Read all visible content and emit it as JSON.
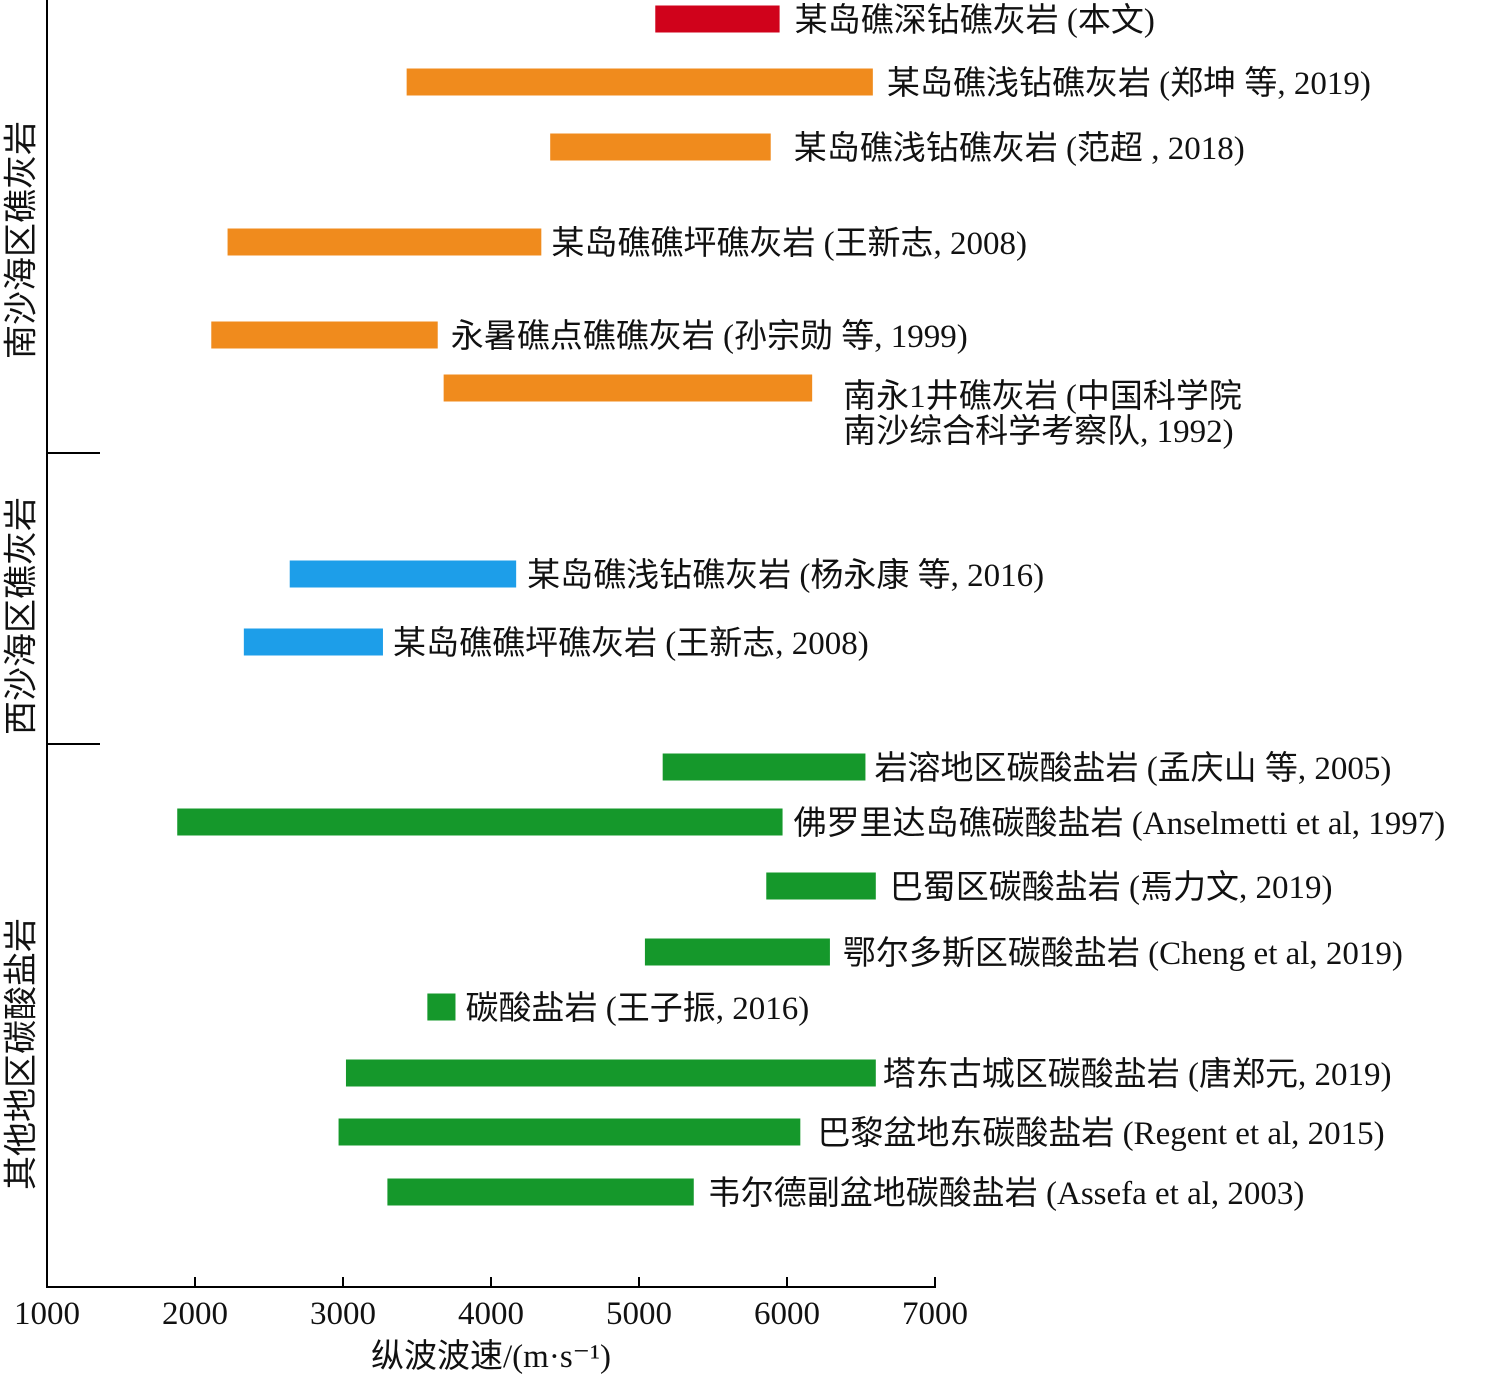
{
  "chart_data": {
    "type": "bar",
    "orientation": "horizontal",
    "xlabel": "纵波波速/(m·s⁻¹)",
    "ylabel": "",
    "xlim": [
      1000,
      7000
    ],
    "xticks": [
      1000,
      2000,
      3000,
      4000,
      5000,
      6000,
      7000
    ],
    "grid": false,
    "groups": [
      {
        "label": "南沙海区礁灰岩",
        "bars": [
          {
            "label": "某岛礁深钻礁灰岩 (本文)",
            "range": [
              5110,
              5950
            ],
            "color": "#d0021b"
          },
          {
            "label": "某岛礁浅钻礁灰岩 (郑坤 等, 2019)",
            "range": [
              3430,
              6580
            ],
            "color": "#f08b1d"
          },
          {
            "label": "某岛礁浅钻礁灰岩 (范超 , 2018)",
            "range": [
              4400,
              5890
            ],
            "color": "#f08b1d"
          },
          {
            "label": "某岛礁礁坪礁灰岩 (王新志, 2008)",
            "range": [
              2220,
              4340
            ],
            "color": "#f08b1d"
          },
          {
            "label": "永暑礁点礁礁灰岩 (孙宗勋 等, 1999)",
            "range": [
              2110,
              3640
            ],
            "color": "#f08b1d"
          },
          {
            "label_lines": [
              "南永1井礁灰岩 (中国科学院",
              "南沙综合科学考察队, 1992)"
            ],
            "range": [
              3680,
              6170
            ],
            "color": "#f08b1d"
          }
        ]
      },
      {
        "label": "西沙海区礁灰岩",
        "bars": [
          {
            "label": "某岛礁浅钻礁灰岩 (杨永康 等, 2016)",
            "range": [
              2640,
              4170
            ],
            "color": "#1d9ee9"
          },
          {
            "label": "某岛礁礁坪礁灰岩 (王新志, 2008)",
            "range": [
              2330,
              3270
            ],
            "color": "#1d9ee9"
          }
        ]
      },
      {
        "label": "其他地区碳酸盐岩",
        "bars": [
          {
            "label": "岩溶地区碳酸盐岩 (孟庆山 等, 2005)",
            "range": [
              5160,
              6530
            ],
            "color": "#15982b"
          },
          {
            "label": "佛罗里达岛礁碳酸盐岩 (Anselmetti et al, 1997)",
            "range": [
              1880,
              5970
            ],
            "color": "#15982b"
          },
          {
            "label": "巴蜀区碳酸盐岩 (焉力文, 2019)",
            "range": [
              5860,
              6600
            ],
            "color": "#15982b"
          },
          {
            "label": "鄂尔多斯区碳酸盐岩 (Cheng et al, 2019)",
            "range": [
              5040,
              6290
            ],
            "color": "#15982b"
          },
          {
            "label": "碳酸盐岩 (王子振, 2016)",
            "range": [
              3570,
              3760
            ],
            "color": "#15982b"
          },
          {
            "label": "塔东古城区碳酸盐岩 (唐郑元, 2019)",
            "range": [
              3020,
              6600
            ],
            "color": "#15982b"
          },
          {
            "label": "巴黎盆地东碳酸盐岩 (Regent et al, 2015)",
            "range": [
              2970,
              6090
            ],
            "color": "#15982b"
          },
          {
            "label": "韦尔德副盆地碳酸盐岩 (Assefa et al, 2003)",
            "range": [
              3300,
              5370
            ],
            "color": "#15982b"
          }
        ]
      }
    ]
  }
}
